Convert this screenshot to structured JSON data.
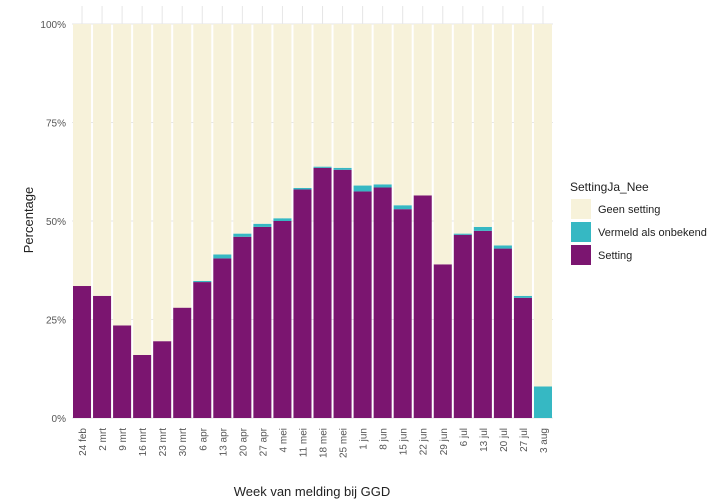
{
  "chart_data": {
    "type": "bar",
    "stacked": true,
    "xlabel": "Week van melding bij GGD",
    "ylabel": "Percentage",
    "ylim": [
      0,
      100
    ],
    "y_ticks": [
      "0%",
      "25%",
      "50%",
      "75%",
      "100%"
    ],
    "grid": true,
    "legend_position": "right",
    "legend_title": "SettingJa_Nee",
    "categories": [
      "24 feb",
      "2 mrt",
      "9 mrt",
      "16 mrt",
      "23 mrt",
      "30 mrt",
      "6 apr",
      "13 apr",
      "20 apr",
      "27 apr",
      "4 mei",
      "11 mei",
      "18 mei",
      "25 mei",
      "1 jun",
      "8 jun",
      "15 jun",
      "22 jun",
      "29 jun",
      "6 jul",
      "13 jul",
      "20 jul",
      "27 jul",
      "3 aug"
    ],
    "series": [
      {
        "name": "Setting",
        "color": "#7B1570",
        "values": [
          33.5,
          31,
          23.5,
          16,
          19.5,
          28,
          34.5,
          40.5,
          46,
          48.5,
          50,
          58,
          63.5,
          63,
          57.5,
          58.5,
          53,
          56.5,
          39,
          46.5,
          47.5,
          43,
          30.5,
          0
        ]
      },
      {
        "name": "Vermeld als onbekend",
        "color": "#36B8C3",
        "values": [
          0,
          0,
          0,
          0,
          0,
          0,
          0.3,
          1,
          0.8,
          0.8,
          0.7,
          0.4,
          0.3,
          0.5,
          1.5,
          0.8,
          1,
          0,
          0,
          0.3,
          1,
          0.8,
          0.5,
          8
        ]
      },
      {
        "name": "Geen setting",
        "color": "#F7F2DA",
        "values": [
          66.5,
          69,
          76.5,
          84,
          80.5,
          72,
          65.2,
          58.5,
          53.2,
          50.7,
          49.3,
          41.6,
          36.2,
          36.5,
          41,
          40.7,
          46,
          43.5,
          61,
          53.2,
          51.5,
          56.2,
          69,
          92
        ]
      }
    ],
    "legend_order": [
      "Geen setting",
      "Vermeld als onbekend",
      "Setting"
    ]
  }
}
